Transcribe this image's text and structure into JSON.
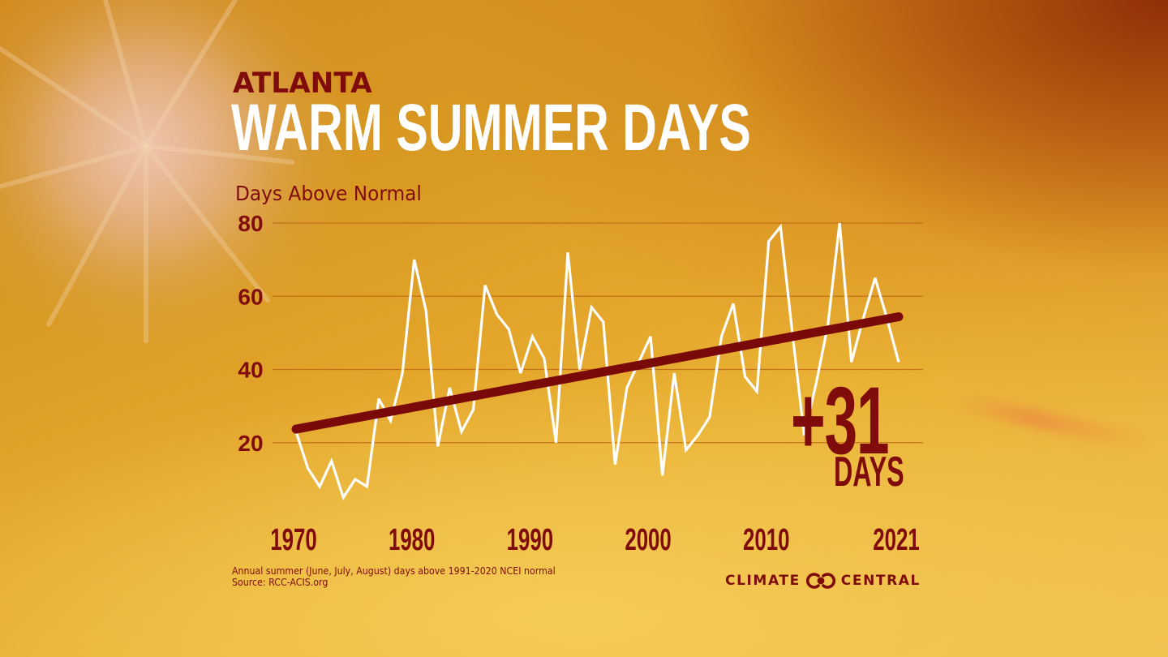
{
  "header": {
    "city": "ATLANTA",
    "title": "WARM SUMMER DAYS",
    "y_axis_title": "Days Above Normal"
  },
  "annotation": {
    "change_value": "+31",
    "change_unit": "DAYS"
  },
  "footer": {
    "note_line1": "Annual summer (June, July, August) days above 1991-2020 NCEI normal",
    "note_line2": "Source: RCC-ACIS.org",
    "brand_left": "CLIMATE",
    "brand_right": "CENTRAL",
    "brand_icon": "climate-central-logo-icon"
  },
  "colors": {
    "text_dark_red": "#7f0c0a",
    "line_white": "#ffffff",
    "trend_dark_red": "#7a0a0a",
    "gridline": "#c0651a"
  },
  "chart_data": {
    "type": "line",
    "title": "WARM SUMMER DAYS",
    "subtitle": "ATLANTA",
    "xlabel": "",
    "ylabel": "Days Above Normal",
    "x": [
      1970,
      1971,
      1972,
      1973,
      1974,
      1975,
      1976,
      1977,
      1978,
      1979,
      1980,
      1981,
      1982,
      1983,
      1984,
      1985,
      1986,
      1987,
      1988,
      1989,
      1990,
      1991,
      1992,
      1993,
      1994,
      1995,
      1996,
      1997,
      1998,
      1999,
      2000,
      2001,
      2002,
      2003,
      2004,
      2005,
      2006,
      2007,
      2008,
      2009,
      2010,
      2011,
      2012,
      2013,
      2014,
      2015,
      2016,
      2017,
      2018,
      2019,
      2020,
      2021
    ],
    "series": [
      {
        "name": "Days above normal",
        "color": "#ffffff",
        "values": [
          23,
          13,
          8,
          15,
          5,
          10,
          8,
          32,
          26,
          39,
          70,
          56,
          19,
          35,
          23,
          29,
          63,
          55,
          51,
          39,
          49,
          43,
          20,
          72,
          40,
          57,
          53,
          14,
          35,
          42,
          49,
          11,
          39,
          18,
          22,
          27,
          49,
          58,
          38,
          34,
          75,
          79,
          50,
          22,
          36,
          52,
          80,
          42,
          54,
          65,
          54,
          42
        ]
      },
      {
        "name": "Trend",
        "color": "#7a0a0a",
        "x": [
          1970,
          2021
        ],
        "values": [
          23.7,
          54.4
        ]
      }
    ],
    "xticks": [
      1970,
      1980,
      1990,
      2000,
      2010,
      2021
    ],
    "xtick_labels": [
      "1970",
      "1980",
      "1990",
      "2000",
      "2010",
      "2021"
    ],
    "yticks": [
      20,
      40,
      60,
      80
    ],
    "ytick_labels": [
      "20",
      "40",
      "60",
      "80"
    ],
    "xlim": [
      1970,
      2021
    ],
    "ylim": [
      0,
      80
    ],
    "grid": "horizontal",
    "legend": "none",
    "annotations": [
      "+31 DAYS"
    ]
  }
}
